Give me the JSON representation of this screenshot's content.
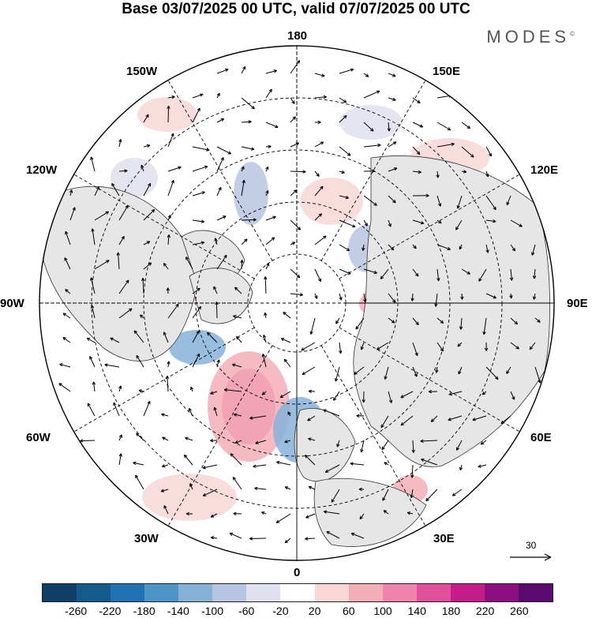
{
  "title": "Base 03/07/2025 00 UTC, valid 07/07/2025 00 UTC",
  "brand": "MODES",
  "brand_mark": "©",
  "labels": {
    "top": "180",
    "bottom": "0",
    "left": "90W",
    "right": "90E",
    "upper_left": "150W",
    "upper_right": "150E",
    "mid_upper_left": "120W",
    "mid_upper_right": "120E",
    "lower_left": "60W",
    "lower_right": "60E",
    "bottom_left": "30W",
    "bottom_right": "30E"
  },
  "vector_scale": "30",
  "colorbar": {
    "ticks": [
      "-260",
      "-220",
      "-180",
      "-140",
      "-100",
      "-60",
      "-20",
      "20",
      "60",
      "100",
      "140",
      "180",
      "220",
      "260"
    ],
    "colors": [
      "#0f3f66",
      "#155a8c",
      "#2171b5",
      "#4f96c8",
      "#86b2d8",
      "#b9c6e2",
      "#dfe1ef",
      "#ffffff",
      "#f8d7d7",
      "#f4aeb8",
      "#ee84ab",
      "#e0509d",
      "#c41c8b",
      "#8f0e7f",
      "#5a0a6e"
    ]
  }
}
